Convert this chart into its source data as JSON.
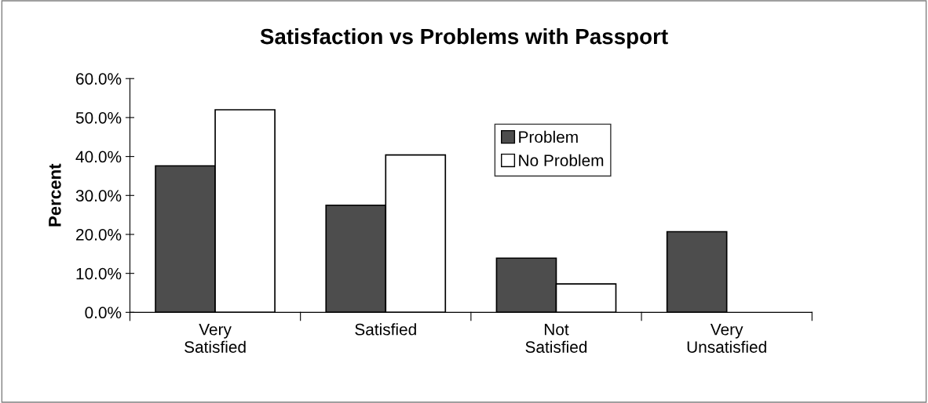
{
  "chart_data": {
    "type": "bar",
    "title": "Satisfaction vs Problems with Passport",
    "ylabel": "Percent",
    "categories": [
      "Very\nSatisfied",
      "Satisfied",
      "Not\nSatisfied",
      "Very\nUnsatisfied"
    ],
    "series": [
      {
        "name": "Problem",
        "color": "#4d4d4d",
        "values": [
          37.6,
          27.5,
          13.9,
          20.7
        ]
      },
      {
        "name": "No Problem",
        "color": "#ffffff",
        "values": [
          52.0,
          40.4,
          7.3,
          null
        ]
      }
    ],
    "ylim": [
      0,
      60
    ],
    "yticks": [
      {
        "value": 0,
        "label": "0.0%"
      },
      {
        "value": 10,
        "label": "10.0%"
      },
      {
        "value": 20,
        "label": "20.0%"
      },
      {
        "value": 30,
        "label": "30.0%"
      },
      {
        "value": 40,
        "label": "40.0%"
      },
      {
        "value": 50,
        "label": "50.0%"
      },
      {
        "value": 60,
        "label": "60.0%"
      }
    ],
    "grid": false,
    "legend": "top"
  }
}
